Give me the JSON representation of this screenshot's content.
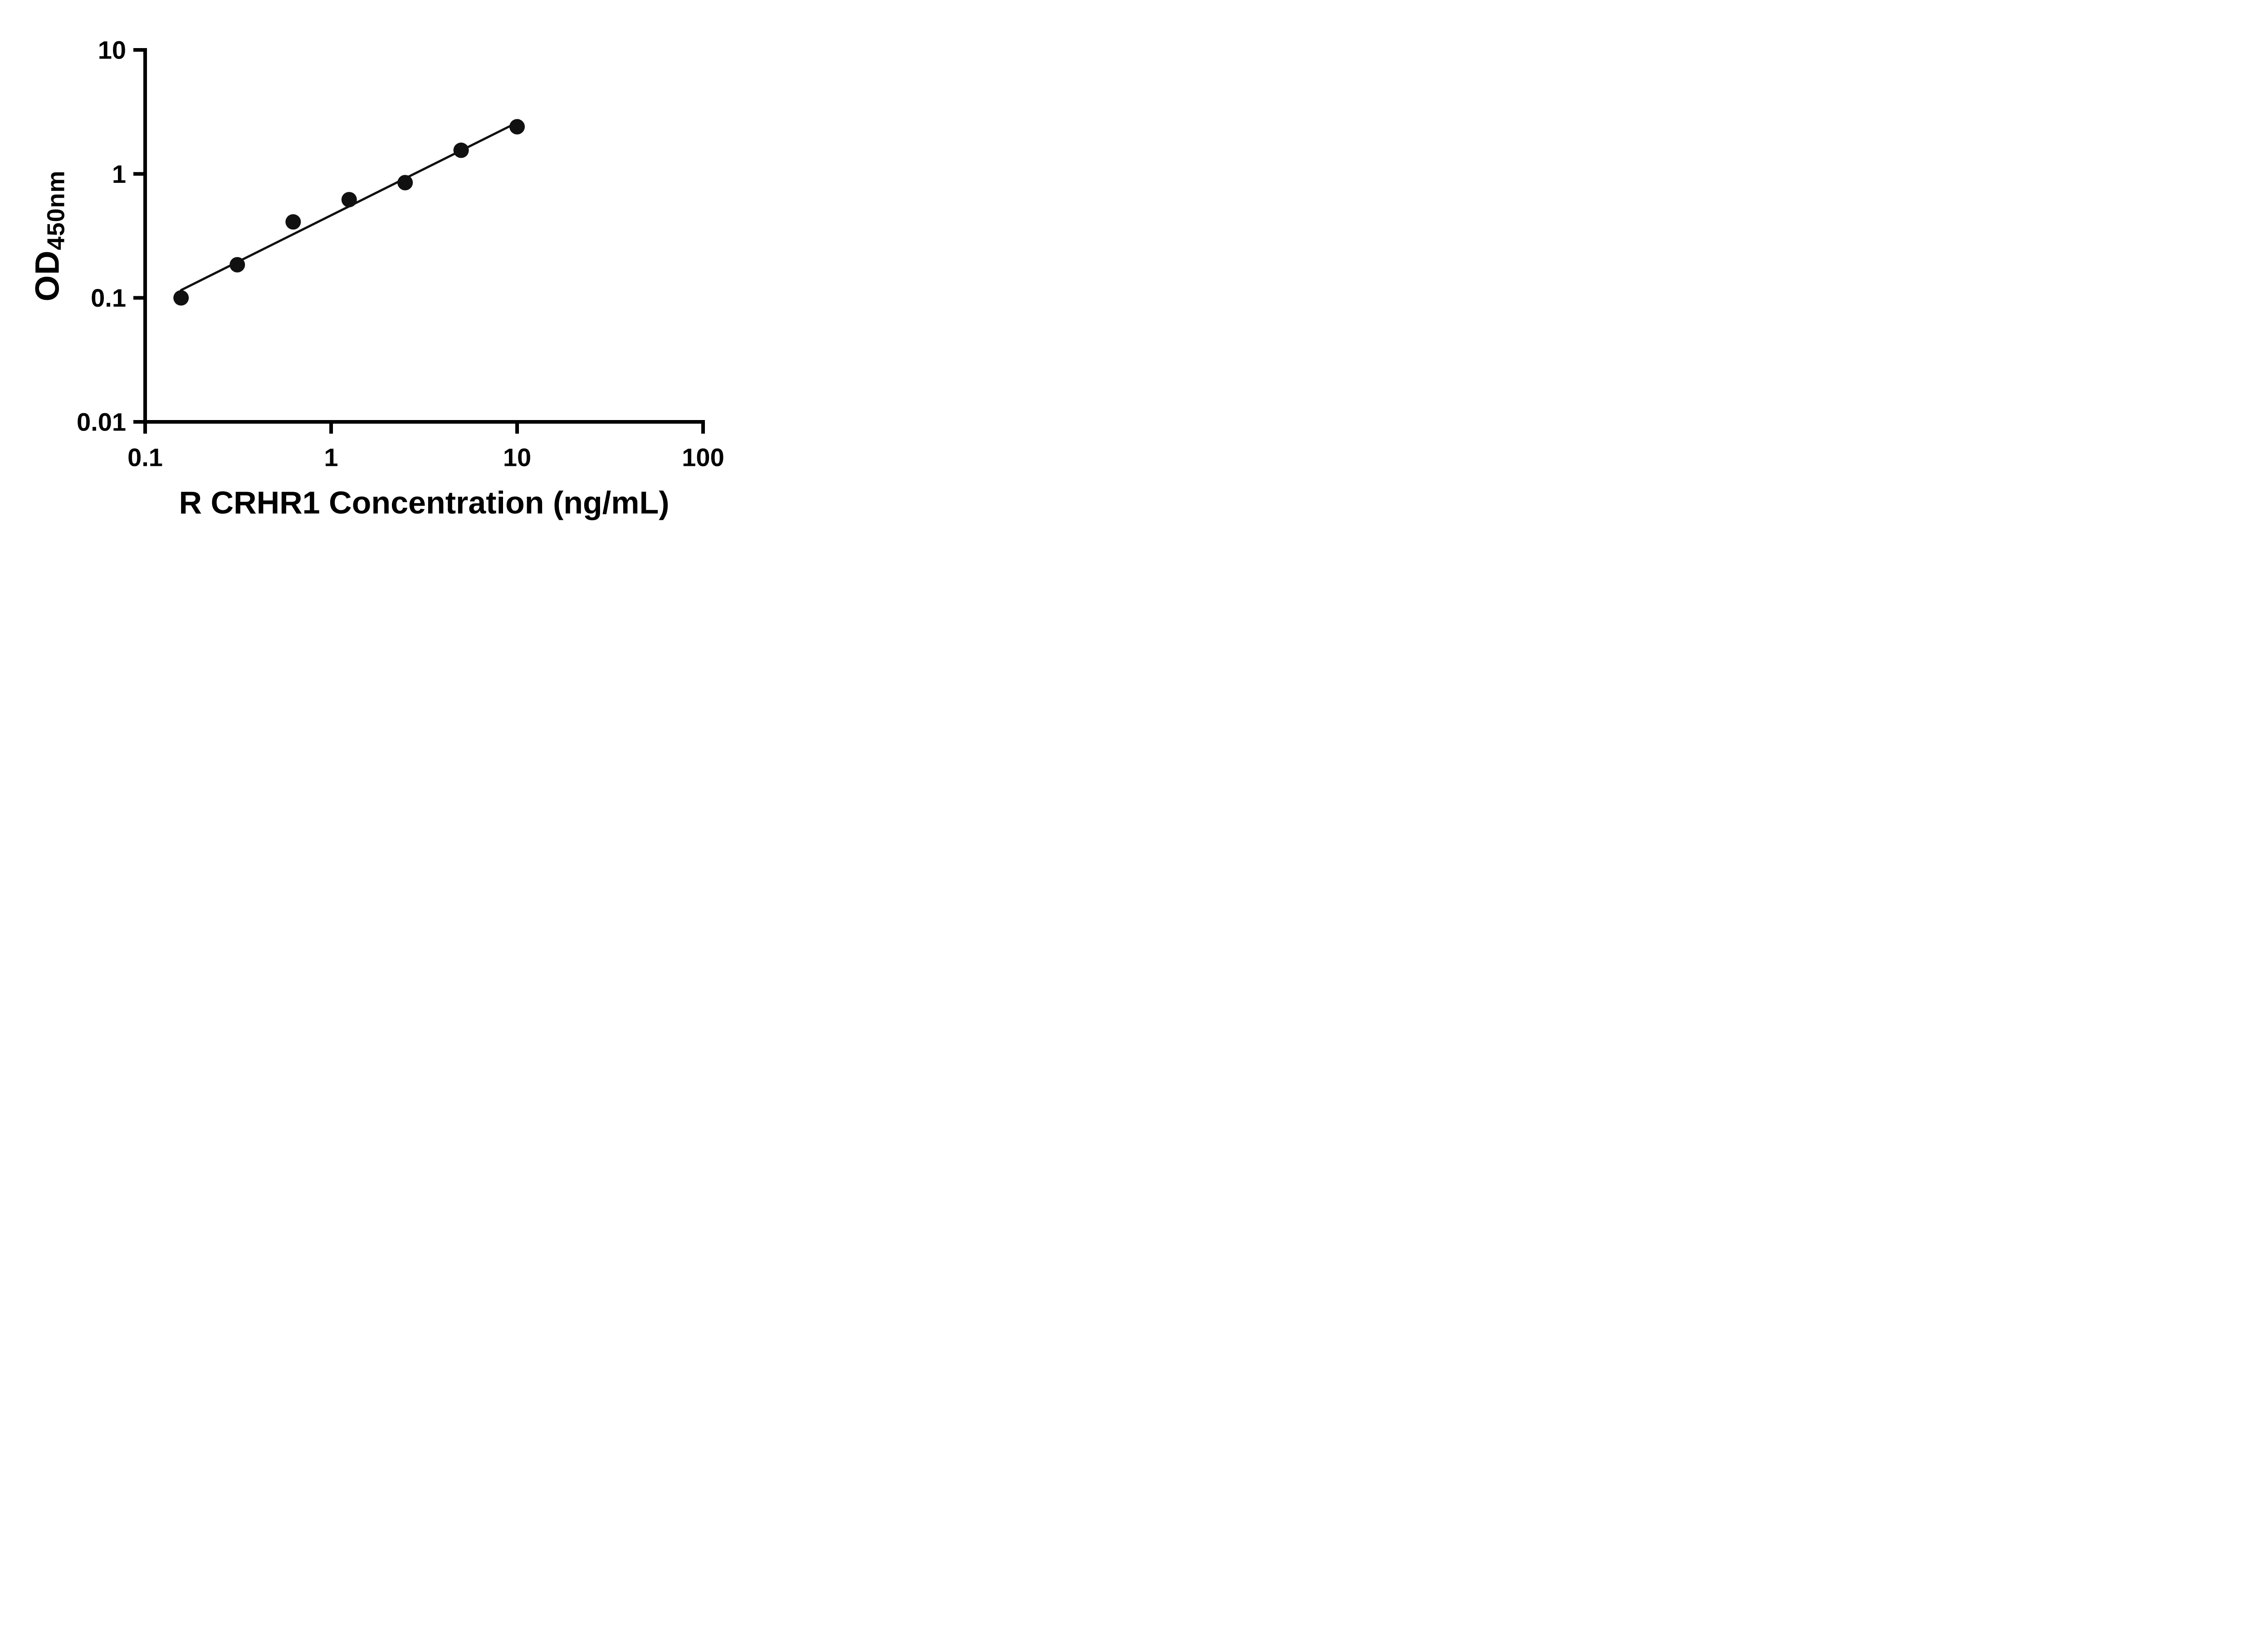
{
  "chart_data": {
    "type": "scatter",
    "title": "",
    "xlabel": "R CRHR1 Concentration (ng/mL)",
    "ylabel_main": "OD",
    "ylabel_sub": "450nm",
    "x_scale": "log",
    "y_scale": "log",
    "xlim": [
      0.1,
      100
    ],
    "ylim": [
      0.01,
      10
    ],
    "x_ticks": [
      0.1,
      1,
      10,
      100
    ],
    "x_tick_labels": [
      "0.1",
      "1",
      "10",
      "100"
    ],
    "y_ticks": [
      0.01,
      0.1,
      1,
      10
    ],
    "y_tick_labels": [
      "0.01",
      "0.1",
      "1",
      "10"
    ],
    "grid": false,
    "legend": "none",
    "points": {
      "x": [
        0.156,
        0.313,
        0.625,
        1.25,
        2.5,
        5,
        10
      ],
      "y": [
        0.1,
        0.185,
        0.41,
        0.62,
        0.85,
        1.55,
        2.4
      ]
    },
    "trendline": {
      "type": "power",
      "coefficient": 0.4634,
      "exponent": 0.748,
      "x_start": 0.156,
      "x_end": 10
    },
    "colors": {
      "axis": "#000000",
      "point": "#111111",
      "line": "#111111",
      "text": "#000000"
    }
  }
}
